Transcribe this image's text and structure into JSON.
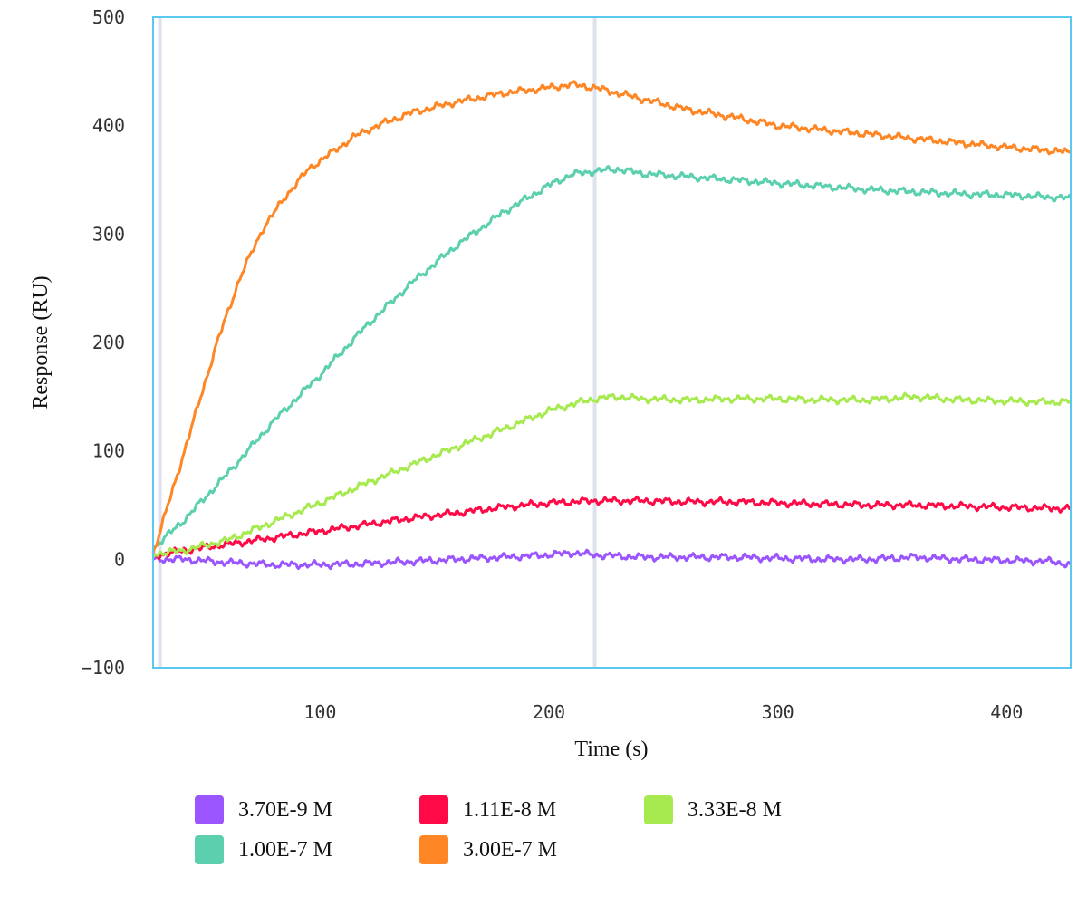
{
  "chart_data": {
    "type": "line",
    "title": "",
    "xlabel": "Time (s)",
    "ylabel": "Response (RU)",
    "xlim": [
      27,
      428
    ],
    "ylim": [
      -100,
      500
    ],
    "xticks": [
      100,
      200,
      300,
      400
    ],
    "yticks": [
      -100,
      0,
      100,
      200,
      300,
      400,
      500
    ],
    "grid": false,
    "legend_position": "bottom",
    "vertical_markers": [
      30,
      220
    ],
    "colors": {
      "frame": "#5bc8ef",
      "marker": "#dde1ec"
    },
    "series": [
      {
        "name": "3.70E-9 M",
        "color": "#9b55ff",
        "x": [
          27,
          40,
          60,
          80,
          100,
          120,
          140,
          160,
          180,
          200,
          210,
          220,
          240,
          260,
          280,
          300,
          320,
          340,
          360,
          380,
          400,
          420,
          428
        ],
        "y": [
          0,
          0,
          -3,
          -5,
          -5,
          -4,
          -2,
          0,
          2,
          4,
          6,
          4,
          2,
          2,
          2,
          1,
          0,
          0,
          2,
          0,
          -1,
          -2,
          -5
        ]
      },
      {
        "name": "1.11E-8 M",
        "color": "#ff0a47",
        "x": [
          27,
          40,
          60,
          80,
          100,
          120,
          140,
          160,
          180,
          200,
          210,
          220,
          240,
          260,
          280,
          300,
          320,
          340,
          360,
          380,
          400,
          420,
          428
        ],
        "y": [
          3,
          8,
          14,
          20,
          26,
          32,
          38,
          43,
          48,
          52,
          53,
          54,
          54,
          53,
          53,
          52,
          51,
          50,
          50,
          49,
          48,
          47,
          47
        ]
      },
      {
        "name": "3.33E-8 M",
        "color": "#a7ea4f",
        "x": [
          27,
          40,
          60,
          80,
          100,
          120,
          140,
          160,
          180,
          200,
          210,
          220,
          230,
          240,
          260,
          280,
          300,
          320,
          340,
          360,
          380,
          400,
          420,
          428
        ],
        "y": [
          5,
          8,
          18,
          35,
          52,
          70,
          87,
          104,
          120,
          137,
          143,
          148,
          150,
          148,
          147,
          148,
          148,
          147,
          147,
          150,
          147,
          146,
          145,
          146
        ]
      },
      {
        "name": "1.00E-7 M",
        "color": "#5bcfae",
        "x": [
          27,
          40,
          60,
          80,
          100,
          120,
          140,
          160,
          180,
          200,
          210,
          220,
          230,
          240,
          260,
          280,
          300,
          320,
          340,
          360,
          380,
          400,
          420,
          428
        ],
        "y": [
          10,
          35,
          80,
          128,
          170,
          215,
          255,
          290,
          320,
          345,
          355,
          358,
          360,
          356,
          353,
          350,
          347,
          344,
          341,
          339,
          337,
          336,
          334,
          333
        ]
      },
      {
        "name": "3.00E-7 M",
        "color": "#ff8624",
        "x": [
          27,
          35,
          45,
          55,
          65,
          75,
          85,
          95,
          105,
          115,
          125,
          140,
          160,
          180,
          200,
          210,
          220,
          240,
          260,
          280,
          300,
          320,
          340,
          360,
          380,
          400,
          420,
          428
        ],
        "y": [
          5,
          60,
          130,
          200,
          260,
          305,
          335,
          360,
          375,
          390,
          400,
          412,
          422,
          430,
          435,
          438,
          435,
          425,
          415,
          408,
          400,
          396,
          392,
          388,
          384,
          380,
          377,
          375
        ]
      }
    ]
  }
}
